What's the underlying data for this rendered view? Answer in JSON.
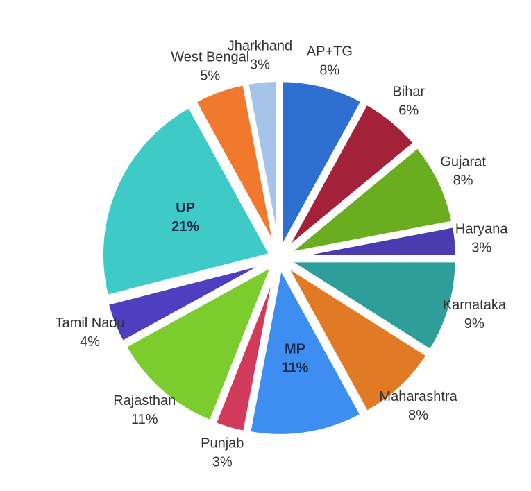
{
  "chart_data": {
    "type": "pie",
    "categories": [
      "AP+TG",
      "Bihar",
      "Gujarat",
      "Haryana",
      "Karnataka",
      "Maharashtra",
      "MP",
      "Punjab",
      "Rajasthan",
      "Tamil Nadu",
      "UP",
      "West Bengal",
      "Jharkhand"
    ],
    "values": [
      8,
      6,
      8,
      3,
      9,
      8,
      11,
      3,
      11,
      4,
      21,
      5,
      3
    ],
    "value_labels": [
      "8%",
      "6%",
      "8%",
      "3%",
      "9%",
      "8%",
      "11%",
      "3%",
      "11%",
      "4%",
      "21%",
      "5%",
      "3%"
    ],
    "colors": [
      "#2f6fcf",
      "#a3223a",
      "#6aad1e",
      "#4b3bb0",
      "#2e9e9a",
      "#e07a25",
      "#3d8ef0",
      "#d23a5c",
      "#7ccc2e",
      "#4f3ec0",
      "#3ecbc8",
      "#f0792e",
      "#a6c4ea"
    ]
  }
}
